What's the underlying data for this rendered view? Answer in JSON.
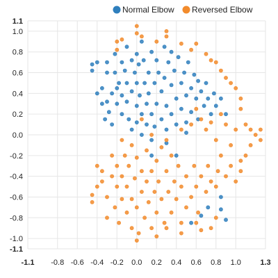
{
  "chart_data": {
    "type": "scatter",
    "title": "",
    "xlabel": "",
    "ylabel": "",
    "xlim": [
      -1.1,
      1.3
    ],
    "ylim": [
      -1.1,
      1.1
    ],
    "x_ticks": [
      "-1.1",
      "-0.8",
      "-0.6",
      "-0.4",
      "-0.2",
      "0.0",
      "0.2",
      "0.4",
      "0.6",
      "0.8",
      "1.0",
      "1.3"
    ],
    "y_ticks": [
      "1.1",
      "1.0",
      "0.8",
      "0.6",
      "0.4",
      "0.2",
      "0.0",
      "-0.2",
      "-0.4",
      "-0.6",
      "-0.8",
      "-1.0",
      "-1.1"
    ],
    "grid": true,
    "legend_position": "top-right",
    "series": [
      {
        "name": "Normal Elbow",
        "color": "#2f7fbd",
        "points": [
          [
            -0.45,
            0.68
          ],
          [
            -0.45,
            0.62
          ],
          [
            -0.4,
            0.7
          ],
          [
            -0.4,
            0.4
          ],
          [
            -0.35,
            0.45
          ],
          [
            -0.35,
            0.3
          ],
          [
            -0.32,
            0.15
          ],
          [
            -0.3,
            0.7
          ],
          [
            -0.3,
            0.6
          ],
          [
            -0.3,
            0.32
          ],
          [
            -0.28,
            0.22
          ],
          [
            -0.25,
            0.4
          ],
          [
            -0.25,
            0.1
          ],
          [
            -0.22,
            0.78
          ],
          [
            -0.22,
            0.6
          ],
          [
            -0.2,
            0.45
          ],
          [
            -0.2,
            0.3
          ],
          [
            -0.18,
            0.5
          ],
          [
            -0.15,
            0.7
          ],
          [
            -0.15,
            0.38
          ],
          [
            -0.15,
            0.2
          ],
          [
            -0.12,
            0.62
          ],
          [
            -0.1,
            0.5
          ],
          [
            -0.1,
            0.32
          ],
          [
            -0.08,
            0.15
          ],
          [
            -0.05,
            0.72
          ],
          [
            -0.05,
            0.42
          ],
          [
            -0.05,
            0.05
          ],
          [
            -0.02,
            0.6
          ],
          [
            0.0,
            0.5
          ],
          [
            0.0,
            0.28
          ],
          [
            0.0,
            0.12
          ],
          [
            0.02,
            0.68
          ],
          [
            0.03,
            0.38
          ],
          [
            0.05,
            0.2
          ],
          [
            0.05,
            0.0
          ],
          [
            0.07,
            0.72
          ],
          [
            0.08,
            0.5
          ],
          [
            0.1,
            0.3
          ],
          [
            0.1,
            0.1
          ],
          [
            0.12,
            0.6
          ],
          [
            0.12,
            0.4
          ],
          [
            0.15,
            0.8
          ],
          [
            0.15,
            0.2
          ],
          [
            0.18,
            0.5
          ],
          [
            0.18,
            0.08
          ],
          [
            0.2,
            0.72
          ],
          [
            0.2,
            0.3
          ],
          [
            0.22,
            0.6
          ],
          [
            0.25,
            0.42
          ],
          [
            0.25,
            0.15
          ],
          [
            0.28,
            0.85
          ],
          [
            0.28,
            0.55
          ],
          [
            0.3,
            0.28
          ],
          [
            0.3,
            0.05
          ],
          [
            0.32,
            0.7
          ],
          [
            0.35,
            0.48
          ],
          [
            0.35,
            0.2
          ],
          [
            0.38,
            0.62
          ],
          [
            0.4,
            0.35
          ],
          [
            0.4,
            0.1
          ],
          [
            0.42,
            0.75
          ],
          [
            0.45,
            0.5
          ],
          [
            0.45,
            0.25
          ],
          [
            0.48,
            0.6
          ],
          [
            0.5,
            0.38
          ],
          [
            0.5,
            0.12
          ],
          [
            0.52,
            0.7
          ],
          [
            0.55,
            0.45
          ],
          [
            0.55,
            0.22
          ],
          [
            0.58,
            0.58
          ],
          [
            0.6,
            0.35
          ],
          [
            0.62,
            0.52
          ],
          [
            0.62,
            0.15
          ],
          [
            0.65,
            0.42
          ],
          [
            0.68,
            0.28
          ],
          [
            0.7,
            0.5
          ],
          [
            0.72,
            0.35
          ],
          [
            0.75,
            0.2
          ],
          [
            0.78,
            0.4
          ],
          [
            0.8,
            0.28
          ],
          [
            0.85,
            0.35
          ],
          [
            0.9,
            0.2
          ],
          [
            -0.1,
            0.85
          ],
          [
            0.05,
            0.9
          ],
          [
            0.0,
            0.78
          ],
          [
            0.35,
            0.8
          ],
          [
            0.5,
            0.02
          ],
          [
            0.15,
            -0.05
          ],
          [
            0.3,
            -0.08
          ],
          [
            0.85,
            -0.6
          ],
          [
            0.72,
            -0.7
          ],
          [
            0.85,
            -0.72
          ],
          [
            0.55,
            -0.85
          ],
          [
            0.65,
            -0.78
          ],
          [
            0.9,
            -0.82
          ],
          [
            0.15,
            -0.2
          ],
          [
            0.4,
            -0.2
          ]
        ]
      },
      {
        "name": "Reversed Elbow",
        "color": "#f28b2c",
        "points": [
          [
            -0.45,
            -0.58
          ],
          [
            -0.45,
            -0.65
          ],
          [
            -0.4,
            -0.3
          ],
          [
            -0.4,
            -0.5
          ],
          [
            -0.35,
            -0.35
          ],
          [
            -0.35,
            -0.45
          ],
          [
            -0.3,
            -0.6
          ],
          [
            -0.3,
            -0.8
          ],
          [
            -0.25,
            -0.4
          ],
          [
            -0.25,
            -0.2
          ],
          [
            -0.22,
            -0.7
          ],
          [
            -0.2,
            -0.5
          ],
          [
            -0.2,
            -0.3
          ],
          [
            -0.18,
            -0.85
          ],
          [
            -0.15,
            -0.62
          ],
          [
            -0.15,
            -0.4
          ],
          [
            -0.12,
            -0.2
          ],
          [
            -0.1,
            -0.75
          ],
          [
            -0.1,
            -0.5
          ],
          [
            -0.08,
            -0.3
          ],
          [
            -0.05,
            -0.9
          ],
          [
            -0.05,
            -0.62
          ],
          [
            -0.02,
            -0.42
          ],
          [
            0.0,
            -0.7
          ],
          [
            0.0,
            -0.22
          ],
          [
            0.02,
            -0.95
          ],
          [
            0.05,
            -0.55
          ],
          [
            0.05,
            -0.35
          ],
          [
            0.08,
            -0.8
          ],
          [
            0.1,
            -0.45
          ],
          [
            0.1,
            -0.15
          ],
          [
            0.12,
            -0.65
          ],
          [
            0.15,
            -0.9
          ],
          [
            0.15,
            -0.35
          ],
          [
            0.18,
            -0.55
          ],
          [
            0.2,
            -0.75
          ],
          [
            0.2,
            -0.25
          ],
          [
            0.22,
            -0.45
          ],
          [
            0.25,
            -0.62
          ],
          [
            0.25,
            -0.12
          ],
          [
            0.28,
            -0.85
          ],
          [
            0.3,
            -0.35
          ],
          [
            0.32,
            -0.55
          ],
          [
            0.35,
            -0.75
          ],
          [
            0.35,
            -0.2
          ],
          [
            0.38,
            -0.45
          ],
          [
            0.4,
            -0.62
          ],
          [
            0.42,
            -0.3
          ],
          [
            0.45,
            -0.85
          ],
          [
            0.45,
            -0.5
          ],
          [
            0.5,
            -0.7
          ],
          [
            0.5,
            -0.4
          ],
          [
            0.55,
            -0.6
          ],
          [
            0.58,
            -0.3
          ],
          [
            0.6,
            -0.5
          ],
          [
            0.62,
            -0.75
          ],
          [
            0.65,
            -0.4
          ],
          [
            0.7,
            -0.55
          ],
          [
            0.72,
            -0.3
          ],
          [
            0.75,
            -0.45
          ],
          [
            0.8,
            -0.5
          ],
          [
            0.82,
            -0.35
          ],
          [
            0.85,
            -0.2
          ],
          [
            0.9,
            -0.4
          ],
          [
            0.95,
            -0.3
          ],
          [
            1.0,
            -0.45
          ],
          [
            1.05,
            -0.25
          ],
          [
            -0.2,
            0.9
          ],
          [
            -0.2,
            0.82
          ],
          [
            -0.15,
            0.92
          ],
          [
            0.0,
            1.05
          ],
          [
            0.0,
            0.98
          ],
          [
            0.05,
            0.95
          ],
          [
            0.2,
            0.9
          ],
          [
            0.3,
            0.95
          ],
          [
            0.3,
            1.0
          ],
          [
            0.45,
            0.88
          ],
          [
            0.55,
            0.82
          ],
          [
            0.6,
            0.88
          ],
          [
            0.7,
            0.78
          ],
          [
            0.75,
            0.72
          ],
          [
            0.8,
            0.7
          ],
          [
            0.85,
            0.62
          ],
          [
            0.9,
            0.55
          ],
          [
            0.95,
            0.5
          ],
          [
            1.0,
            0.45
          ],
          [
            1.05,
            0.35
          ],
          [
            1.05,
            0.25
          ],
          [
            1.1,
            0.1
          ],
          [
            1.15,
            0.05
          ],
          [
            1.2,
            0.0
          ],
          [
            1.25,
            0.05
          ],
          [
            1.25,
            -0.05
          ],
          [
            1.15,
            -0.1
          ],
          [
            1.1,
            -0.2
          ],
          [
            1.05,
            -0.35
          ],
          [
            -0.15,
            -0.05
          ],
          [
            -0.05,
            -0.1
          ],
          [
            0.05,
            0.15
          ],
          [
            0.15,
            0.0
          ],
          [
            0.3,
            -0.05
          ],
          [
            0.45,
            0.05
          ],
          [
            0.55,
            0.1
          ],
          [
            0.6,
            0.25
          ],
          [
            0.65,
            0.15
          ],
          [
            0.7,
            0.05
          ],
          [
            0.75,
            0.12
          ],
          [
            0.8,
            -0.05
          ],
          [
            0.85,
            0.2
          ],
          [
            0.9,
            0.1
          ],
          [
            0.95,
            -0.1
          ],
          [
            1.0,
            0.05
          ],
          [
            0.6,
            -0.85
          ],
          [
            0.65,
            -0.92
          ],
          [
            0.75,
            -0.9
          ],
          [
            0.8,
            -0.8
          ],
          [
            0.45,
            -0.95
          ],
          [
            0.3,
            -0.9
          ],
          [
            0.2,
            -0.98
          ],
          [
            0.0,
            -1.02
          ]
        ]
      }
    ]
  }
}
